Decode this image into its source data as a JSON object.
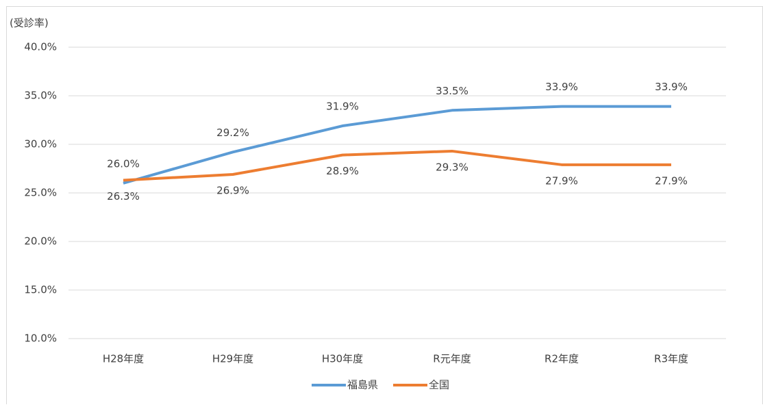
{
  "chart_data": {
    "type": "line",
    "y_axis_label": "(受診率)",
    "categories": [
      "H28年度",
      "H29年度",
      "H30年度",
      "R元年度",
      "R2年度",
      "R3年度"
    ],
    "series": [
      {
        "name": "福島県",
        "color": "#5b9bd5",
        "values": [
          26.0,
          29.2,
          31.9,
          33.5,
          33.9,
          33.9
        ],
        "value_labels": [
          "26.0%",
          "29.2%",
          "31.9%",
          "33.5%",
          "33.9%",
          "33.9%"
        ]
      },
      {
        "name": "全国",
        "color": "#ed7d31",
        "values": [
          26.3,
          26.9,
          28.9,
          29.3,
          27.9,
          27.9
        ],
        "value_labels": [
          "26.3%",
          "26.9%",
          "28.9%",
          "29.3%",
          "27.9%",
          "27.9%"
        ]
      }
    ],
    "ylim": [
      10,
      40
    ],
    "yticks": [
      {
        "value": 10,
        "label": "10.0%"
      },
      {
        "value": 15,
        "label": "15.0%"
      },
      {
        "value": 20,
        "label": "20.0%"
      },
      {
        "value": 25,
        "label": "25.0%"
      },
      {
        "value": 30,
        "label": "30.0%"
      },
      {
        "value": 35,
        "label": "35.0%"
      },
      {
        "value": 40,
        "label": "40.0%"
      }
    ],
    "grid": true
  }
}
